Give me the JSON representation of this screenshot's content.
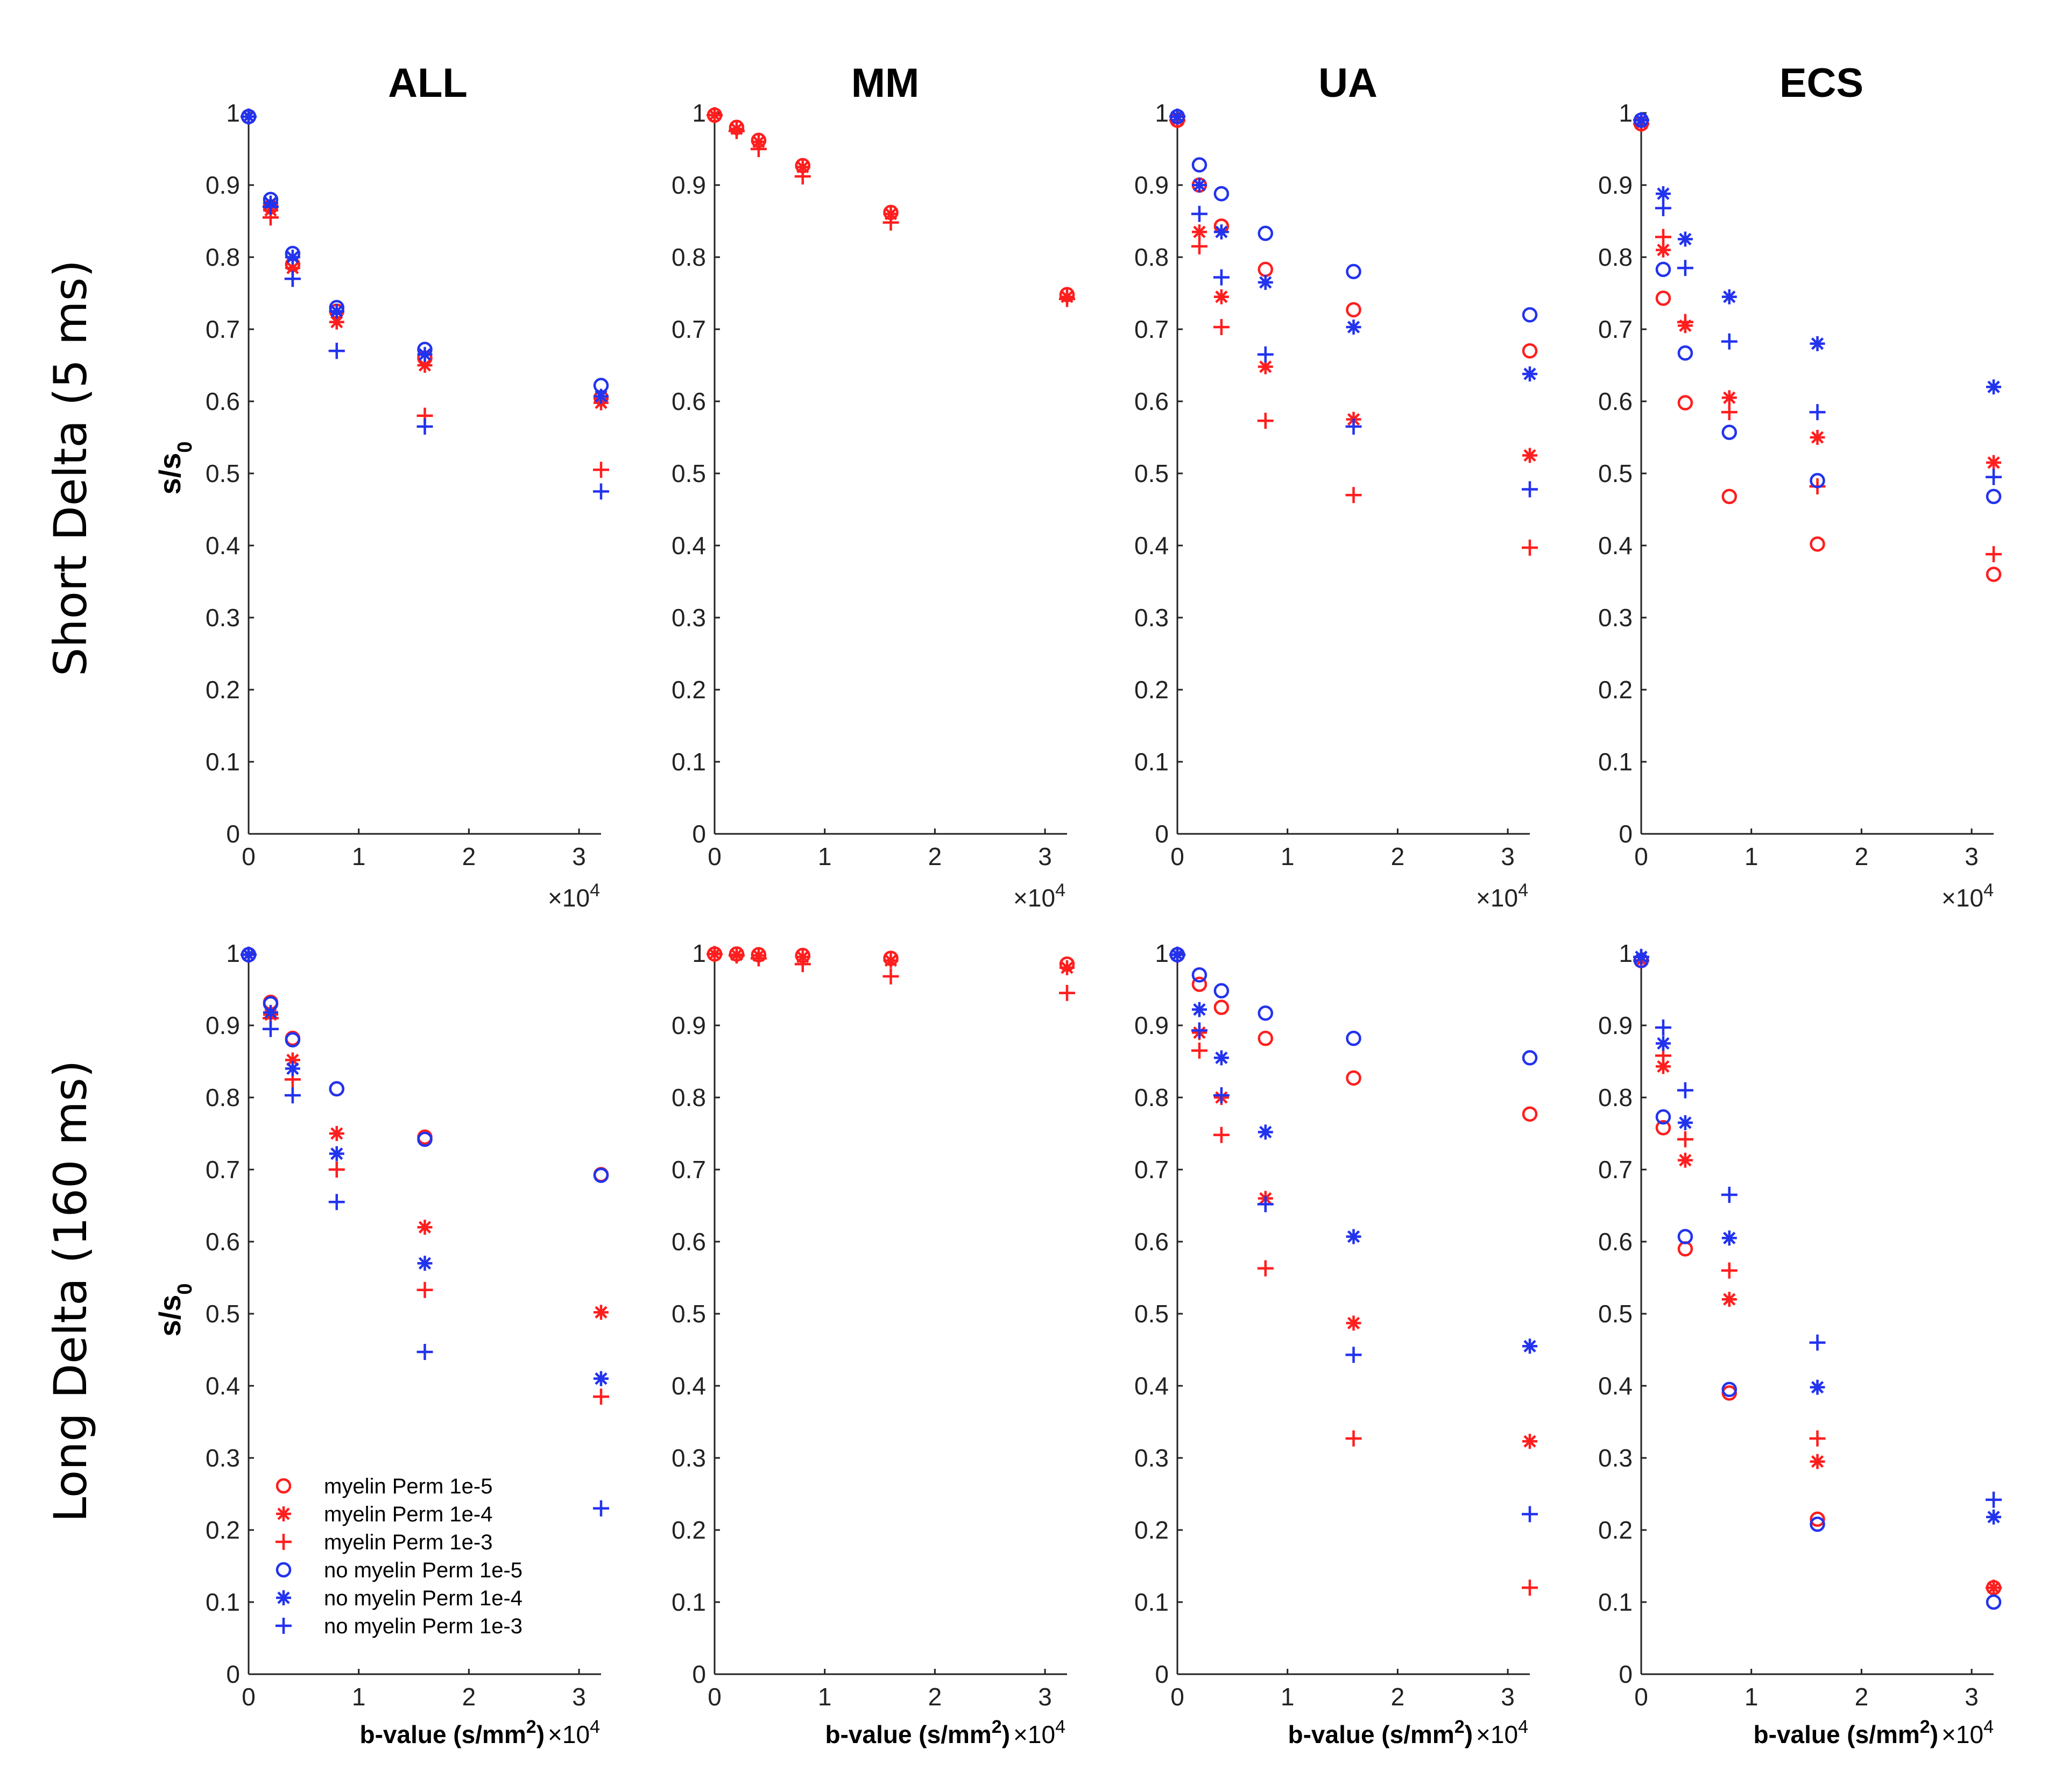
{
  "figure": {
    "row_labels": [
      "Short Delta (5 ms)",
      "Long Delta (160 ms)"
    ],
    "column_titles": [
      "ALL",
      "MM",
      "UA",
      "ECS"
    ],
    "ylabel_main": "s/s",
    "ylabel_sub": "0",
    "xlabel_main": "b-value (s/mm",
    "xlabel_sup": "2",
    "xlabel_end": ")",
    "multiplier_main": "×10",
    "multiplier_exp": "4",
    "colors": {
      "red": "#ff1e1e",
      "blue": "#2233ee"
    }
  },
  "chart_data": [
    {
      "type": "scatter",
      "row": 0,
      "col": 0,
      "title": "ALL",
      "x_units": "b-value (s/mm^2) x 10^4",
      "xlim": [
        0,
        3.2
      ],
      "ylim": [
        0,
        1
      ],
      "xticks": [
        0,
        1,
        2,
        3
      ],
      "yticks": [
        0,
        0.1,
        0.2,
        0.3,
        0.4,
        0.5,
        0.6,
        0.7,
        0.8,
        0.9,
        1
      ],
      "x": [
        0,
        0.2,
        0.4,
        0.8,
        1.6,
        3.2
      ],
      "series": [
        {
          "name": "myelin Perm 1e-5",
          "color": "red",
          "marker": "o",
          "values": [
            0.995,
            0.87,
            0.79,
            0.725,
            0.66,
            0.605
          ]
        },
        {
          "name": "myelin Perm 1e-4",
          "color": "red",
          "marker": "*",
          "values": [
            0.995,
            0.865,
            0.785,
            0.71,
            0.65,
            0.598
          ]
        },
        {
          "name": "myelin Perm 1e-3",
          "color": "red",
          "marker": "+",
          "values": [
            0.995,
            0.855,
            0.77,
            0.67,
            0.58,
            0.505
          ]
        },
        {
          "name": "no myelin Perm 1e-5",
          "color": "blue",
          "marker": "o",
          "values": [
            0.995,
            0.88,
            0.805,
            0.73,
            0.672,
            0.622
          ]
        },
        {
          "name": "no myelin Perm 1e-4",
          "color": "blue",
          "marker": "*",
          "values": [
            0.995,
            0.875,
            0.8,
            0.725,
            0.665,
            0.607
          ]
        },
        {
          "name": "no myelin Perm 1e-3",
          "color": "blue",
          "marker": "+",
          "values": [
            0.995,
            0.87,
            0.77,
            0.67,
            0.565,
            0.475
          ]
        }
      ]
    },
    {
      "type": "scatter",
      "row": 0,
      "col": 1,
      "title": "MM",
      "x_units": "b-value (s/mm^2) x 10^4",
      "xlim": [
        0,
        3.2
      ],
      "ylim": [
        0,
        1
      ],
      "xticks": [
        0,
        1,
        2,
        3
      ],
      "yticks": [
        0,
        0.1,
        0.2,
        0.3,
        0.4,
        0.5,
        0.6,
        0.7,
        0.8,
        0.9,
        1
      ],
      "x": [
        0,
        0.2,
        0.4,
        0.8,
        1.6,
        3.2
      ],
      "series": [
        {
          "name": "myelin Perm 1e-5",
          "color": "red",
          "marker": "o",
          "values": [
            0.997,
            0.98,
            0.962,
            0.927,
            0.862,
            0.748
          ]
        },
        {
          "name": "myelin Perm 1e-4",
          "color": "red",
          "marker": "*",
          "values": [
            0.997,
            0.978,
            0.96,
            0.925,
            0.86,
            0.745
          ]
        },
        {
          "name": "myelin Perm 1e-3",
          "color": "red",
          "marker": "+",
          "values": [
            0.997,
            0.975,
            0.95,
            0.912,
            0.848,
            0.742
          ]
        }
      ]
    },
    {
      "type": "scatter",
      "row": 0,
      "col": 2,
      "title": "UA",
      "x_units": "b-value (s/mm^2) x 10^4",
      "xlim": [
        0,
        3.2
      ],
      "ylim": [
        0,
        1
      ],
      "xticks": [
        0,
        1,
        2,
        3
      ],
      "yticks": [
        0,
        0.1,
        0.2,
        0.3,
        0.4,
        0.5,
        0.6,
        0.7,
        0.8,
        0.9,
        1
      ],
      "x": [
        0,
        0.2,
        0.4,
        0.8,
        1.6,
        3.2
      ],
      "series": [
        {
          "name": "myelin Perm 1e-5",
          "color": "red",
          "marker": "o",
          "values": [
            0.99,
            0.9,
            0.843,
            0.783,
            0.727,
            0.67
          ]
        },
        {
          "name": "myelin Perm 1e-4",
          "color": "red",
          "marker": "*",
          "values": [
            0.99,
            0.835,
            0.745,
            0.648,
            0.575,
            0.525
          ]
        },
        {
          "name": "myelin Perm 1e-3",
          "color": "red",
          "marker": "+",
          "values": [
            0.99,
            0.815,
            0.703,
            0.573,
            0.47,
            0.397
          ]
        },
        {
          "name": "no myelin Perm 1e-5",
          "color": "blue",
          "marker": "o",
          "values": [
            0.995,
            0.928,
            0.888,
            0.833,
            0.78,
            0.72
          ]
        },
        {
          "name": "no myelin Perm 1e-4",
          "color": "blue",
          "marker": "*",
          "values": [
            0.995,
            0.9,
            0.835,
            0.765,
            0.703,
            0.638
          ]
        },
        {
          "name": "no myelin Perm 1e-3",
          "color": "blue",
          "marker": "+",
          "values": [
            0.995,
            0.86,
            0.772,
            0.665,
            0.565,
            0.478
          ]
        }
      ]
    },
    {
      "type": "scatter",
      "row": 0,
      "col": 3,
      "title": "ECS",
      "x_units": "b-value (s/mm^2) x 10^4",
      "xlim": [
        0,
        3.2
      ],
      "ylim": [
        0,
        1
      ],
      "xticks": [
        0,
        1,
        2,
        3
      ],
      "yticks": [
        0,
        0.1,
        0.2,
        0.3,
        0.4,
        0.5,
        0.6,
        0.7,
        0.8,
        0.9,
        1
      ],
      "x": [
        0,
        0.2,
        0.4,
        0.8,
        1.6,
        3.2
      ],
      "series": [
        {
          "name": "myelin Perm 1e-5",
          "color": "red",
          "marker": "o",
          "values": [
            0.985,
            0.743,
            0.598,
            0.468,
            0.402,
            0.36
          ]
        },
        {
          "name": "myelin Perm 1e-4",
          "color": "red",
          "marker": "*",
          "values": [
            0.985,
            0.81,
            0.705,
            0.605,
            0.55,
            0.515
          ]
        },
        {
          "name": "myelin Perm 1e-3",
          "color": "red",
          "marker": "+",
          "values": [
            0.985,
            0.828,
            0.71,
            0.585,
            0.482,
            0.388
          ]
        },
        {
          "name": "no myelin Perm 1e-5",
          "color": "blue",
          "marker": "o",
          "values": [
            0.99,
            0.783,
            0.667,
            0.557,
            0.49,
            0.468
          ]
        },
        {
          "name": "no myelin Perm 1e-4",
          "color": "blue",
          "marker": "*",
          "values": [
            0.99,
            0.888,
            0.825,
            0.745,
            0.68,
            0.62
          ]
        },
        {
          "name": "no myelin Perm 1e-3",
          "color": "blue",
          "marker": "+",
          "values": [
            0.99,
            0.868,
            0.785,
            0.683,
            0.585,
            0.495
          ]
        }
      ]
    },
    {
      "type": "scatter",
      "row": 1,
      "col": 0,
      "title": "",
      "x_units": "b-value (s/mm^2) x 10^4",
      "xlim": [
        0,
        3.2
      ],
      "ylim": [
        0,
        1
      ],
      "xticks": [
        0,
        1,
        2,
        3
      ],
      "yticks": [
        0,
        0.1,
        0.2,
        0.3,
        0.4,
        0.5,
        0.6,
        0.7,
        0.8,
        0.9,
        1
      ],
      "x": [
        0,
        0.2,
        0.4,
        0.8,
        1.6,
        3.2
      ],
      "legend": {
        "location": "bottom-left",
        "entries": [
          "myelin Perm 1e-5",
          "myelin Perm 1e-4",
          "myelin Perm 1e-3",
          "no myelin Perm 1e-5",
          "no myelin Perm 1e-4",
          "no myelin Perm 1e-3"
        ]
      },
      "series": [
        {
          "name": "myelin Perm 1e-5",
          "color": "red",
          "marker": "o",
          "values": [
            0.998,
            0.932,
            0.882,
            0.812,
            0.745,
            0.693
          ]
        },
        {
          "name": "myelin Perm 1e-4",
          "color": "red",
          "marker": "*",
          "values": [
            0.998,
            0.915,
            0.852,
            0.75,
            0.62,
            0.502
          ]
        },
        {
          "name": "myelin Perm 1e-3",
          "color": "red",
          "marker": "+",
          "values": [
            0.998,
            0.91,
            0.825,
            0.7,
            0.533,
            0.385
          ]
        },
        {
          "name": "no myelin Perm 1e-5",
          "color": "blue",
          "marker": "o",
          "values": [
            0.998,
            0.93,
            0.88,
            0.812,
            0.742,
            0.692
          ]
        },
        {
          "name": "no myelin Perm 1e-4",
          "color": "blue",
          "marker": "*",
          "values": [
            0.998,
            0.918,
            0.84,
            0.722,
            0.57,
            0.41
          ]
        },
        {
          "name": "no myelin Perm 1e-3",
          "color": "blue",
          "marker": "+",
          "values": [
            0.998,
            0.895,
            0.803,
            0.655,
            0.447,
            0.23
          ]
        }
      ]
    },
    {
      "type": "scatter",
      "row": 1,
      "col": 1,
      "title": "",
      "x_units": "b-value (s/mm^2) x 10^4",
      "xlim": [
        0,
        3.2
      ],
      "ylim": [
        0,
        1
      ],
      "xticks": [
        0,
        1,
        2,
        3
      ],
      "yticks": [
        0,
        0.1,
        0.2,
        0.3,
        0.4,
        0.5,
        0.6,
        0.7,
        0.8,
        0.9,
        1
      ],
      "x": [
        0,
        0.2,
        0.4,
        0.8,
        1.6,
        3.2
      ],
      "series": [
        {
          "name": "myelin Perm 1e-5",
          "color": "red",
          "marker": "o",
          "values": [
            0.999,
            0.999,
            0.998,
            0.997,
            0.993,
            0.985
          ]
        },
        {
          "name": "myelin Perm 1e-4",
          "color": "red",
          "marker": "*",
          "values": [
            0.999,
            0.998,
            0.997,
            0.995,
            0.99,
            0.98
          ]
        },
        {
          "name": "myelin Perm 1e-3",
          "color": "red",
          "marker": "+",
          "values": [
            0.999,
            0.997,
            0.993,
            0.985,
            0.968,
            0.945
          ]
        }
      ]
    },
    {
      "type": "scatter",
      "row": 1,
      "col": 2,
      "title": "",
      "x_units": "b-value (s/mm^2) x 10^4",
      "xlim": [
        0,
        3.2
      ],
      "ylim": [
        0,
        1
      ],
      "xticks": [
        0,
        1,
        2,
        3
      ],
      "yticks": [
        0,
        0.1,
        0.2,
        0.3,
        0.4,
        0.5,
        0.6,
        0.7,
        0.8,
        0.9,
        1
      ],
      "x": [
        0,
        0.2,
        0.4,
        0.8,
        1.6,
        3.2
      ],
      "series": [
        {
          "name": "myelin Perm 1e-5",
          "color": "red",
          "marker": "o",
          "values": [
            0.998,
            0.957,
            0.925,
            0.882,
            0.827,
            0.777
          ]
        },
        {
          "name": "myelin Perm 1e-4",
          "color": "red",
          "marker": "*",
          "values": [
            0.998,
            0.89,
            0.8,
            0.66,
            0.487,
            0.323
          ]
        },
        {
          "name": "myelin Perm 1e-3",
          "color": "red",
          "marker": "+",
          "values": [
            0.998,
            0.865,
            0.748,
            0.563,
            0.327,
            0.12
          ]
        },
        {
          "name": "no myelin Perm 1e-5",
          "color": "blue",
          "marker": "o",
          "values": [
            0.998,
            0.97,
            0.948,
            0.917,
            0.882,
            0.855
          ]
        },
        {
          "name": "no myelin Perm 1e-4",
          "color": "blue",
          "marker": "*",
          "values": [
            0.998,
            0.922,
            0.855,
            0.752,
            0.607,
            0.455
          ]
        },
        {
          "name": "no myelin Perm 1e-3",
          "color": "blue",
          "marker": "+",
          "values": [
            0.998,
            0.893,
            0.803,
            0.652,
            0.443,
            0.222
          ]
        }
      ]
    },
    {
      "type": "scatter",
      "row": 1,
      "col": 3,
      "title": "",
      "x_units": "b-value (s/mm^2) x 10^4",
      "xlim": [
        0,
        3.2
      ],
      "ylim": [
        0,
        1
      ],
      "xticks": [
        0,
        1,
        2,
        3
      ],
      "yticks": [
        0,
        0.1,
        0.2,
        0.3,
        0.4,
        0.5,
        0.6,
        0.7,
        0.8,
        0.9,
        1
      ],
      "x": [
        0,
        0.2,
        0.4,
        0.8,
        1.6,
        3.2
      ],
      "series": [
        {
          "name": "myelin Perm 1e-5",
          "color": "red",
          "marker": "o",
          "values": [
            0.99,
            0.758,
            0.59,
            0.39,
            0.215,
            0.12
          ]
        },
        {
          "name": "myelin Perm 1e-4",
          "color": "red",
          "marker": "*",
          "values": [
            0.99,
            0.843,
            0.713,
            0.52,
            0.295,
            0.12
          ]
        },
        {
          "name": "myelin Perm 1e-3",
          "color": "red",
          "marker": "+",
          "values": [
            0.99,
            0.858,
            0.742,
            0.56,
            0.327,
            0.12
          ]
        },
        {
          "name": "no myelin Perm 1e-5",
          "color": "blue",
          "marker": "o",
          "values": [
            0.99,
            0.773,
            0.607,
            0.395,
            0.208,
            0.1
          ]
        },
        {
          "name": "no myelin Perm 1e-4",
          "color": "blue",
          "marker": "*",
          "values": [
            0.995,
            0.875,
            0.765,
            0.605,
            0.398,
            0.218
          ]
        },
        {
          "name": "no myelin Perm 1e-3",
          "color": "blue",
          "marker": "+",
          "values": [
            0.995,
            0.897,
            0.81,
            0.665,
            0.46,
            0.242
          ]
        }
      ]
    }
  ]
}
